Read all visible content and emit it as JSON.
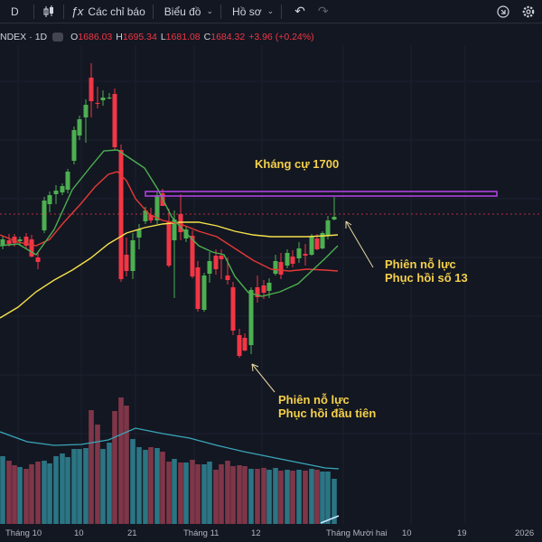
{
  "toolbar": {
    "interval": "D",
    "indicators_label": "Các chỉ báo",
    "charts_label": "Biểu đồ",
    "profile_label": "Hồ sơ"
  },
  "legend": {
    "symbol": "NDEX",
    "separator": "·",
    "interval": "1D",
    "open_key": "O",
    "open": "1686.03",
    "high_key": "H",
    "high": "1695.34",
    "low_key": "L",
    "low": "1681.08",
    "close_key": "C",
    "close": "1684.32",
    "change": "+3.96 (+0.24%)"
  },
  "annotations": {
    "resistance": "Kháng cự 1700",
    "session13_line1": "Phiên nỗ lực",
    "session13_line2": "Phục hồi số 13",
    "first_line1": "Phiên nỗ lực",
    "first_line2": "Phục hồi đầu tiên"
  },
  "xaxis": {
    "t1": "Tháng 10",
    "t2": "10",
    "t3": "21",
    "t4": "Tháng 11",
    "t5": "12",
    "t6": "Tháng Mười hai",
    "t7": "10",
    "t8": "19",
    "t9": "2026"
  },
  "colors": {
    "up": "#4caf50",
    "down": "#f23645",
    "ma_short": "#4caf50",
    "ma_mid": "#e53935",
    "ma_long": "#f5e04a",
    "resistance_box": "#b040e0",
    "annotation": "#f5d04a"
  },
  "chart_data": {
    "type": "candlestick",
    "resistance_level": 1700,
    "last_close": 1684.32
  }
}
